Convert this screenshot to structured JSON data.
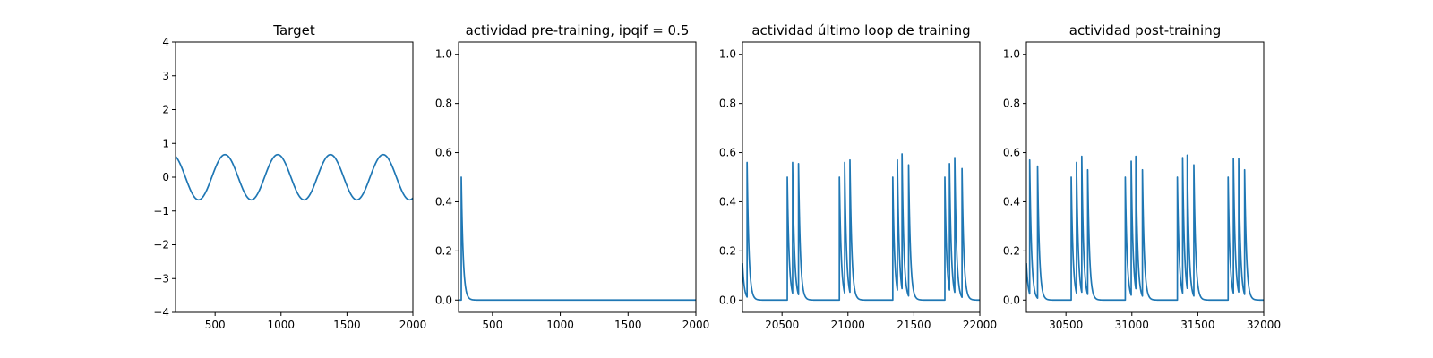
{
  "colors": {
    "line": "#1f77b4"
  },
  "chart_data": [
    {
      "type": "line",
      "title": "Target",
      "xlabel": "",
      "ylabel": "",
      "xlim": [
        200,
        2000
      ],
      "ylim": [
        -4,
        4
      ],
      "xticks": [
        500,
        1000,
        1500,
        2000
      ],
      "yticks": [
        -4,
        -3,
        -2,
        -1,
        0,
        1,
        2,
        3,
        4
      ],
      "ytick_labels": [
        "−4",
        "−3",
        "−2",
        "−1",
        "0",
        "1",
        "2",
        "3",
        "4"
      ],
      "grid": false,
      "series": [
        {
          "kind": "sine",
          "amplitude": 0.67,
          "period": 400,
          "peak_x": 575
        }
      ]
    },
    {
      "type": "line",
      "title": "actividad pre-training, ipqif = 0.5",
      "xlabel": "",
      "ylabel": "",
      "xlim": [
        250,
        2000
      ],
      "ylim": [
        -0.05,
        1.05
      ],
      "xticks": [
        500,
        1000,
        1500,
        2000
      ],
      "yticks": [
        0.0,
        0.2,
        0.4,
        0.6,
        0.8,
        1.0
      ],
      "ytick_labels": [
        "0.0",
        "0.2",
        "0.4",
        "0.6",
        "0.8",
        "1.0"
      ],
      "grid": false,
      "series": [
        {
          "kind": "spikes",
          "peaks": [
            [
              270,
              0.5
            ]
          ],
          "decay": 14,
          "baseline": 0.0
        }
      ]
    },
    {
      "type": "line",
      "title": "actividad último loop de training",
      "xlabel": "",
      "ylabel": "",
      "xlim": [
        20200,
        22000
      ],
      "ylim": [
        -0.05,
        1.05
      ],
      "xticks": [
        20500,
        21000,
        21500,
        22000
      ],
      "yticks": [
        0.0,
        0.2,
        0.4,
        0.6,
        0.8,
        1.0
      ],
      "ytick_labels": [
        "0.0",
        "0.2",
        "0.4",
        "0.6",
        "0.8",
        "1.0"
      ],
      "grid": false,
      "series": [
        {
          "kind": "spikes",
          "start_value": 0.15,
          "decay": 14,
          "baseline": 0.0,
          "peaks": [
            [
              20235,
              0.56
            ],
            [
              20540,
              0.5
            ],
            [
              20580,
              0.56
            ],
            [
              20625,
              0.555
            ],
            [
              20935,
              0.5
            ],
            [
              20975,
              0.56
            ],
            [
              21015,
              0.57
            ],
            [
              21340,
              0.5
            ],
            [
              21375,
              0.57
            ],
            [
              21410,
              0.595
            ],
            [
              21460,
              0.55
            ],
            [
              21735,
              0.5
            ],
            [
              21770,
              0.555
            ],
            [
              21810,
              0.58
            ],
            [
              21865,
              0.535
            ]
          ]
        }
      ]
    },
    {
      "type": "line",
      "title": "actividad post-training",
      "xlabel": "",
      "ylabel": "",
      "xlim": [
        30200,
        32000
      ],
      "ylim": [
        -0.05,
        1.05
      ],
      "xticks": [
        30500,
        31000,
        31500,
        32000
      ],
      "yticks": [
        0.0,
        0.2,
        0.4,
        0.6,
        0.8,
        1.0
      ],
      "ytick_labels": [
        "0.0",
        "0.2",
        "0.4",
        "0.6",
        "0.8",
        "1.0"
      ],
      "grid": false,
      "series": [
        {
          "kind": "spikes",
          "start_value": 0.15,
          "decay": 14,
          "baseline": 0.0,
          "peaks": [
            [
              30225,
              0.57
            ],
            [
              30285,
              0.545
            ],
            [
              30540,
              0.5
            ],
            [
              30580,
              0.56
            ],
            [
              30620,
              0.585
            ],
            [
              30665,
              0.53
            ],
            [
              30950,
              0.5
            ],
            [
              30995,
              0.565
            ],
            [
              31030,
              0.585
            ],
            [
              31080,
              0.53
            ],
            [
              31345,
              0.5
            ],
            [
              31385,
              0.58
            ],
            [
              31420,
              0.59
            ],
            [
              31470,
              0.55
            ],
            [
              31730,
              0.5
            ],
            [
              31770,
              0.575
            ],
            [
              31810,
              0.575
            ],
            [
              31855,
              0.53
            ]
          ]
        }
      ]
    }
  ]
}
